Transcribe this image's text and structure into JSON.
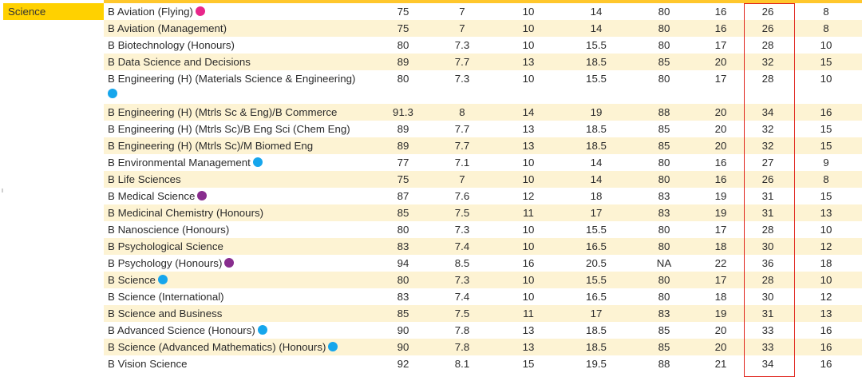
{
  "faculty": "Science",
  "colors": {
    "accent": "#ffd100",
    "highlight_border": "#e0251d",
    "pink": "#e8268a",
    "blue": "#16a6ec",
    "purple": "#882d8e"
  },
  "rows": [
    {
      "name": "B Aviation (Flying)",
      "dot": "pink",
      "values": [
        "75",
        "7",
        "10",
        "14",
        "80",
        "16",
        "26",
        "8"
      ]
    },
    {
      "name": "B Aviation (Management)",
      "dot": "",
      "values": [
        "75",
        "7",
        "10",
        "14",
        "80",
        "16",
        "26",
        "8"
      ]
    },
    {
      "name": "B Biotechnology (Honours)",
      "dot": "",
      "values": [
        "80",
        "7.3",
        "10",
        "15.5",
        "80",
        "17",
        "28",
        "10"
      ]
    },
    {
      "name": "B Data Science and Decisions",
      "dot": "",
      "values": [
        "89",
        "7.7",
        "13",
        "18.5",
        "85",
        "20",
        "32",
        "15"
      ]
    },
    {
      "name": "B Engineering (H) (Materials Science & Engineering)",
      "dot": "blue",
      "tall": true,
      "values": [
        "80",
        "7.3",
        "10",
        "15.5",
        "80",
        "17",
        "28",
        "10"
      ]
    },
    {
      "name": "B Engineering (H) (Mtrls Sc & Eng)/B Commerce",
      "dot": "",
      "values": [
        "91.3",
        "8",
        "14",
        "19",
        "88",
        "20",
        "34",
        "16"
      ]
    },
    {
      "name": "B Engineering (H) (Mtrls Sc)/B Eng Sci (Chem Eng)",
      "dot": "",
      "values": [
        "89",
        "7.7",
        "13",
        "18.5",
        "85",
        "20",
        "32",
        "15"
      ]
    },
    {
      "name": "B Engineering (H) (Mtrls Sc)/M Biomed Eng",
      "dot": "",
      "values": [
        "89",
        "7.7",
        "13",
        "18.5",
        "85",
        "20",
        "32",
        "15"
      ]
    },
    {
      "name": "B Environmental Management",
      "dot": "blue",
      "values": [
        "77",
        "7.1",
        "10",
        "14",
        "80",
        "16",
        "27",
        "9"
      ]
    },
    {
      "name": "B Life Sciences",
      "dot": "",
      "values": [
        "75",
        "7",
        "10",
        "14",
        "80",
        "16",
        "26",
        "8"
      ]
    },
    {
      "name": "B Medical Science",
      "dot": "purple",
      "values": [
        "87",
        "7.6",
        "12",
        "18",
        "83",
        "19",
        "31",
        "15"
      ]
    },
    {
      "name": "B Medicinal Chemistry (Honours)",
      "dot": "",
      "values": [
        "85",
        "7.5",
        "11",
        "17",
        "83",
        "19",
        "31",
        "13"
      ]
    },
    {
      "name": "B Nanoscience (Honours)",
      "dot": "",
      "values": [
        "80",
        "7.3",
        "10",
        "15.5",
        "80",
        "17",
        "28",
        "10"
      ]
    },
    {
      "name": "B Psychological Science",
      "dot": "",
      "values": [
        "83",
        "7.4",
        "10",
        "16.5",
        "80",
        "18",
        "30",
        "12"
      ]
    },
    {
      "name": "B Psychology (Honours)",
      "dot": "purple",
      "values": [
        "94",
        "8.5",
        "16",
        "20.5",
        "NA",
        "22",
        "36",
        "18"
      ]
    },
    {
      "name": "B Science",
      "dot": "blue",
      "values": [
        "80",
        "7.3",
        "10",
        "15.5",
        "80",
        "17",
        "28",
        "10"
      ]
    },
    {
      "name": "B Science (International)",
      "dot": "",
      "values": [
        "83",
        "7.4",
        "10",
        "16.5",
        "80",
        "18",
        "30",
        "12"
      ]
    },
    {
      "name": "B Science and Business",
      "dot": "",
      "values": [
        "85",
        "7.5",
        "11",
        "17",
        "83",
        "19",
        "31",
        "13"
      ]
    },
    {
      "name": "B Advanced Science (Honours)",
      "dot": "blue",
      "values": [
        "90",
        "7.8",
        "13",
        "18.5",
        "85",
        "20",
        "33",
        "16"
      ]
    },
    {
      "name": "B Science (Advanced Mathematics) (Honours)",
      "dot": "blue",
      "values": [
        "90",
        "7.8",
        "13",
        "18.5",
        "85",
        "20",
        "33",
        "16"
      ]
    },
    {
      "name": "B Vision Science",
      "dot": "",
      "values": [
        "92",
        "8.1",
        "15",
        "19.5",
        "88",
        "21",
        "34",
        "16"
      ]
    }
  ]
}
